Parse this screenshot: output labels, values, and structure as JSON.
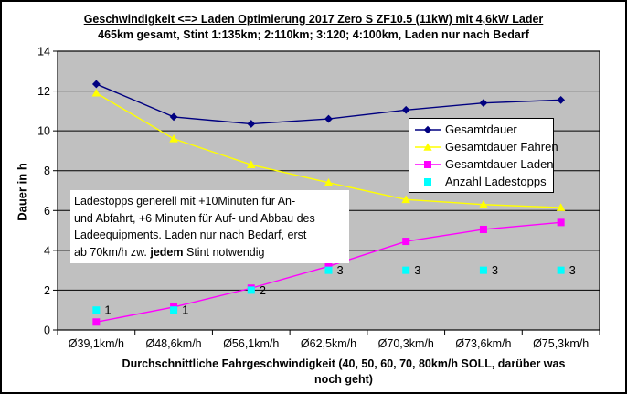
{
  "chart_data": {
    "type": "line",
    "title": "Geschwindigkeit <=> Laden Optimierung 2017 Zero S ZF10.5 (11kW) mit 4,6kW Lader",
    "subtitle": "465km gesamt, Stint 1:135km; 2:110km; 3:120; 4:100km, Laden nur nach Bedarf",
    "xlabel": "Durchschnittliche Fahrgeschwindigkeit (40, 50, 60, 70, 80km/h SOLL, darüber was noch geht)",
    "xlabel_lines": [
      "Durchschnittliche Fahrgeschwindigkeit (40, 50, 60, 70, 80km/h SOLL, darüber was",
      "noch geht)"
    ],
    "ylabel": "Dauer in h",
    "ylim": [
      0,
      14
    ],
    "ytick_step": 2,
    "grid": true,
    "legend_position": "middle-right",
    "plot_bg_color": "#c0c0c0",
    "axis_color": "#000000",
    "categories": [
      "Ø39,1km/h",
      "Ø48,6km/h",
      "Ø56,1km/h",
      "Ø62,5km/h",
      "Ø70,3km/h",
      "Ø73,6km/h",
      "Ø75,3km/h"
    ],
    "series": [
      {
        "name": "Gesamtdauer",
        "color": "#000080",
        "marker": "diamond",
        "line": true,
        "values": [
          12.35,
          10.7,
          10.35,
          10.6,
          11.05,
          11.4,
          11.55
        ]
      },
      {
        "name": "Gesamtdauer Fahren",
        "color": "#ffff00",
        "marker": "triangle",
        "line": true,
        "values": [
          11.9,
          9.6,
          8.3,
          7.4,
          6.55,
          6.3,
          6.15
        ]
      },
      {
        "name": "Gesamtdauer Laden",
        "color": "#ff00ff",
        "marker": "square",
        "line": true,
        "values": [
          0.4,
          1.15,
          2.1,
          3.2,
          4.45,
          5.05,
          5.4
        ]
      },
      {
        "name": "Anzahl Ladestopps",
        "color": "#00ffff",
        "marker": "square",
        "line": false,
        "values": [
          1,
          1,
          2,
          3,
          3,
          3,
          3
        ],
        "point_labels": [
          "1",
          "1",
          "2",
          "3",
          "3",
          "3",
          "3"
        ]
      }
    ]
  },
  "annotation": {
    "line1": "Ladestopps generell mit +10Minuten für An-",
    "line2": "und Abfahrt, +6 Minuten für Auf- und Abbau des",
    "line3": "Ladeequipments. Laden nur nach Bedarf, erst",
    "line4_pre": "ab 70km/h zw. ",
    "line4_bold": "jedem",
    "line4_post": " Stint notwendig"
  }
}
